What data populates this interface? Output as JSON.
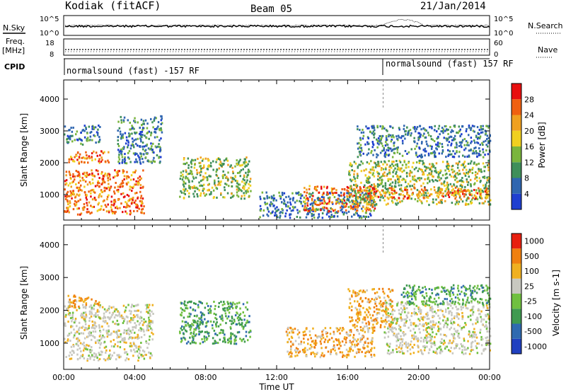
{
  "header": {
    "station": "Kodiak (fitACF)",
    "beam": "Beam 05",
    "date": "21/Jan/2014"
  },
  "top_panels": {
    "nsky_label": "N.Sky",
    "nsearch_label": "N.Search",
    "noise_ticks_left": [
      "10^5",
      "10^0"
    ],
    "noise_ticks_right": [
      "10^5",
      "10^0"
    ],
    "freq_label_1": "Freq.",
    "freq_label_2": "[MHz]",
    "freq_ticks": [
      "18",
      "8"
    ],
    "nave_label": "Nave",
    "nave_ticks": [
      "60",
      "0"
    ],
    "cpid_label": "CPID",
    "cpid_segments": [
      {
        "text": "normalsound (fast) -157 RF",
        "start_hour": 0
      },
      {
        "text": "normalsound (fast) 157 RF",
        "start_hour": 18
      }
    ]
  },
  "chart_data": [
    {
      "type": "heatmap",
      "name": "Power",
      "ylabel": "Slant Range [km]",
      "y_ticks": [
        "1000",
        "2000",
        "3000",
        "4000"
      ],
      "ylim": [
        200,
        4600
      ],
      "xlim": [
        0,
        24
      ],
      "colorbar": {
        "title": "Power [dB]",
        "ticks": [
          "4",
          "8",
          "12",
          "16",
          "20",
          "24",
          "28"
        ],
        "colors": [
          "#1f3fd0",
          "#2f66b0",
          "#3f8f5a",
          "#7ab53d",
          "#f0d020",
          "#f0a020",
          "#f06010",
          "#e81010"
        ]
      },
      "regions": [
        {
          "t0": 0.0,
          "t1": 4.5,
          "r0": 400,
          "r1": 1800,
          "level": "strong"
        },
        {
          "t0": 0.2,
          "t1": 2.5,
          "r0": 2000,
          "r1": 2400,
          "level": "strong"
        },
        {
          "t0": 0.0,
          "t1": 2.0,
          "r0": 2600,
          "r1": 3200,
          "level": "weak"
        },
        {
          "t0": 3.0,
          "t1": 5.5,
          "r0": 2000,
          "r1": 3500,
          "level": "weak"
        },
        {
          "t0": 6.5,
          "t1": 10.5,
          "r0": 900,
          "r1": 2200,
          "level": "medium"
        },
        {
          "t0": 11.0,
          "t1": 17.5,
          "r0": 300,
          "r1": 1100,
          "level": "weak"
        },
        {
          "t0": 13.5,
          "t1": 17.5,
          "r0": 500,
          "r1": 1300,
          "level": "strong"
        },
        {
          "t0": 16.0,
          "t1": 24.0,
          "r0": 700,
          "r1": 2100,
          "level": "medium"
        },
        {
          "t0": 17.0,
          "t1": 24.0,
          "r0": 900,
          "r1": 1250,
          "level": "strong"
        },
        {
          "t0": 16.5,
          "t1": 24.0,
          "r0": 2200,
          "r1": 3200,
          "level": "weak"
        }
      ]
    },
    {
      "type": "heatmap",
      "name": "Velocity",
      "ylabel": "Slant Range [km]",
      "y_ticks": [
        "1000",
        "2000",
        "3000",
        "4000"
      ],
      "ylim": [
        200,
        4600
      ],
      "xlim": [
        0,
        24
      ],
      "x_ticks": [
        "00:00",
        "04:00",
        "08:00",
        "12:00",
        "16:00",
        "20:00",
        "00:00"
      ],
      "xlabel": "Time UT",
      "colorbar": {
        "title": "Velocity [m s-1]",
        "ticks": [
          "1000",
          "500",
          "100",
          "25",
          "-25",
          "-100",
          "-500",
          "-1000"
        ],
        "colors": [
          "#2040c0",
          "#2f6ab0",
          "#3f9a50",
          "#70c040",
          "#c8c8c0",
          "#f0b020",
          "#f08010",
          "#e82010"
        ]
      },
      "regions": [
        {
          "t0": 0.0,
          "t1": 5.0,
          "r0": 500,
          "r1": 2200,
          "level": "gray"
        },
        {
          "t0": 0.2,
          "t1": 2.0,
          "r0": 2100,
          "r1": 2500,
          "level": "orange"
        },
        {
          "t0": 6.5,
          "t1": 10.5,
          "r0": 1000,
          "r1": 2300,
          "level": "green"
        },
        {
          "t0": 12.5,
          "t1": 17.5,
          "r0": 600,
          "r1": 1500,
          "level": "orange"
        },
        {
          "t0": 16.0,
          "t1": 18.5,
          "r0": 1500,
          "r1": 2700,
          "level": "orange"
        },
        {
          "t0": 18.0,
          "t1": 24.0,
          "r0": 700,
          "r1": 2300,
          "level": "gray"
        },
        {
          "t0": 19.0,
          "t1": 24.0,
          "r0": 2200,
          "r1": 2800,
          "level": "green"
        }
      ]
    }
  ]
}
